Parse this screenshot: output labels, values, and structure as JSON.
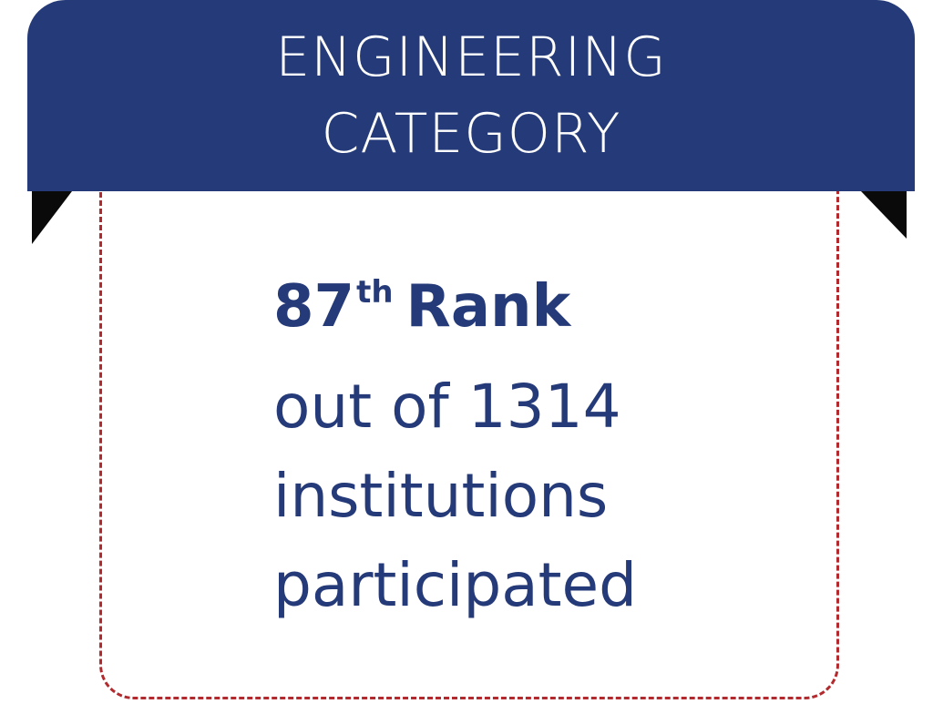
{
  "banner": {
    "line1": "ENGINEERING",
    "line2": "CATEGORY"
  },
  "rank": {
    "number": "87",
    "suffix": "th",
    "label": "Rank"
  },
  "lines": [
    "out of 1314",
    "institutions",
    "participated"
  ],
  "colors": {
    "banner": "#253a78",
    "text": "#253a78",
    "dashed_border": "#b22a2e",
    "ribbon_fold": "#0a0a0a"
  }
}
